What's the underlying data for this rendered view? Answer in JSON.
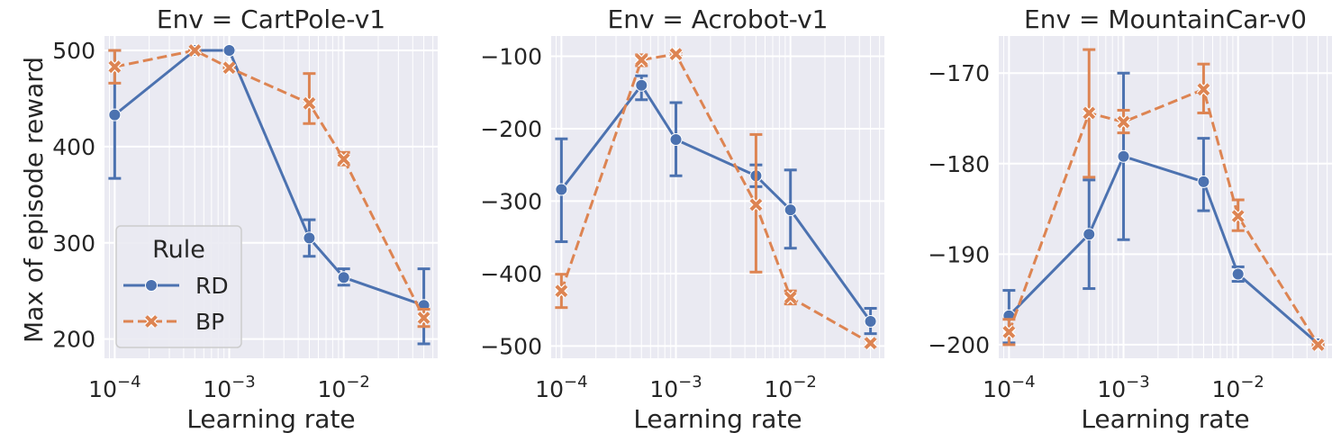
{
  "figure": {
    "ylabel": "Max of episode reward",
    "xlabel": "Learning rate"
  },
  "legend": {
    "title": "Rule",
    "entries": [
      {
        "name": "RD",
        "color": "#4c72b0",
        "marker": "circle",
        "dash": "solid"
      },
      {
        "name": "BP",
        "color": "#dd8452",
        "marker": "x",
        "dash": "dashed"
      }
    ],
    "placement": "lower-left of first panel"
  },
  "chart_data": [
    {
      "type": "line",
      "title": "Env = CartPole-v1",
      "xlabel": "Learning rate",
      "ylabel": "Max of episode reward",
      "xscale": "log",
      "xticks": [
        "10^-4",
        "10^-3",
        "10^-2"
      ],
      "yticks": [
        200,
        300,
        400,
        500
      ],
      "ylim": [
        180,
        515
      ],
      "grid": true,
      "x": [
        0.0001,
        0.0005,
        0.001,
        0.005,
        0.01,
        0.05
      ],
      "series": [
        {
          "name": "RD",
          "values": [
            433,
            500,
            500,
            305,
            264,
            235
          ],
          "err_low": [
            367,
            500,
            500,
            286,
            256,
            195
          ],
          "err_high": [
            500,
            500,
            500,
            324,
            273,
            273
          ]
        },
        {
          "name": "BP",
          "values": [
            483,
            500,
            482,
            445,
            387,
            222
          ],
          "err_low": [
            466,
            500,
            482,
            424,
            381,
            213
          ],
          "err_high": [
            500,
            500,
            482,
            476,
            394,
            231
          ]
        }
      ]
    },
    {
      "type": "line",
      "title": "Env = Acrobot-v1",
      "xlabel": "Learning rate",
      "xscale": "log",
      "xticks": [
        "10^-4",
        "10^-3",
        "10^-2"
      ],
      "yticks": [
        -500,
        -400,
        -300,
        -200,
        -100
      ],
      "ylim": [
        -517,
        -72
      ],
      "grid": true,
      "x": [
        0.0001,
        0.0005,
        0.001,
        0.005,
        0.01,
        0.05
      ],
      "series": [
        {
          "name": "RD",
          "values": [
            -284,
            -140,
            -215,
            -265,
            -312,
            -466
          ],
          "err_low": [
            -356,
            -160,
            -265,
            -280,
            -365,
            -483
          ],
          "err_high": [
            -214,
            -127,
            -164,
            -250,
            -257,
            -448
          ]
        },
        {
          "name": "BP",
          "values": [
            -424,
            -105,
            -97,
            -305,
            -433,
            -496
          ],
          "err_low": [
            -447,
            -113,
            -100,
            -398,
            -442,
            -500
          ],
          "err_high": [
            -401,
            -98,
            -94,
            -208,
            -424,
            -492
          ]
        }
      ]
    },
    {
      "type": "line",
      "title": "Env = MountainCar-v0",
      "xlabel": "Learning rate",
      "xscale": "log",
      "xticks": [
        "10^-4",
        "10^-3",
        "10^-2"
      ],
      "yticks": [
        -200,
        -190,
        -180,
        -170
      ],
      "ylim": [
        -201.5,
        -165.9
      ],
      "grid": true,
      "x": [
        0.0001,
        0.0005,
        0.001,
        0.005,
        0.01,
        0.05
      ],
      "series": [
        {
          "name": "RD",
          "values": [
            -196.8,
            -187.8,
            -179.2,
            -182.0,
            -192.2,
            -199.9
          ],
          "err_low": [
            -199.8,
            -193.8,
            -188.4,
            -185.2,
            -193.0,
            -200.1
          ],
          "err_high": [
            -194.0,
            -181.8,
            -170.0,
            -177.2,
            -191.4,
            -199.7
          ]
        },
        {
          "name": "BP",
          "values": [
            -198.6,
            -174.4,
            -175.4,
            -171.8,
            -185.8,
            -200.0
          ],
          "err_low": [
            -200.0,
            -181.5,
            -176.6,
            -174.4,
            -187.4,
            -200.1
          ],
          "err_high": [
            -197.2,
            -167.4,
            -174.1,
            -169.0,
            -184.0,
            -199.9
          ]
        }
      ]
    }
  ]
}
